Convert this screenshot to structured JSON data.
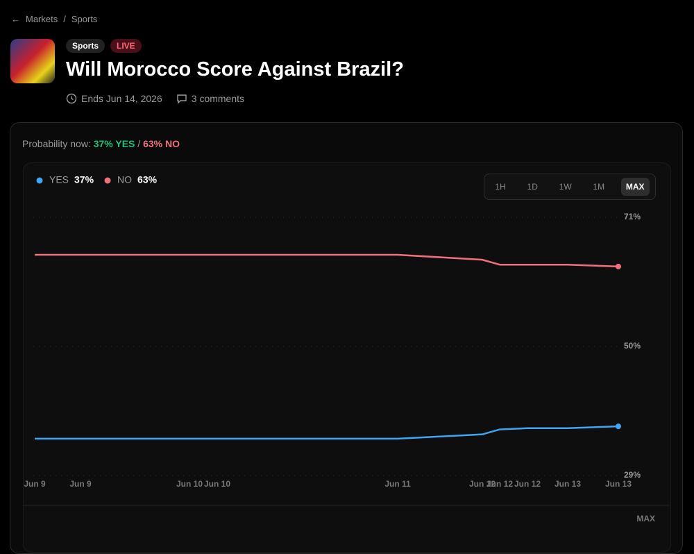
{
  "breadcrumb": [
    "Markets",
    "Sports"
  ],
  "header": {
    "tags": [
      "Sports",
      "LIVE"
    ],
    "title": "Will Morocco Score Against Brazil?",
    "ends": "Ends Jun 14, 2026",
    "comments": "3 comments"
  },
  "probability": {
    "label": "Probability now:",
    "yes": "37% YES",
    "separator": "/",
    "no": "63% NO"
  },
  "ranges": [
    "1H",
    "1D",
    "1W",
    "1M",
    "MAX"
  ],
  "footer_range": "MAX",
  "chart_data": {
    "type": "line",
    "x": [
      "Jun 9",
      "Jun 9",
      "Jun 10",
      "Jun 10",
      "Jun 11",
      "Jun 12",
      "Jun 12",
      "Jun 12",
      "Jun 13",
      "Jun 13"
    ],
    "series": [
      {
        "name": "YES",
        "color": "#3ea6f2",
        "current": "37%",
        "values": [
          35.0,
          35.0,
          35.0,
          35.0,
          35.0,
          35.7,
          36.5,
          36.7,
          36.7,
          37
        ]
      },
      {
        "name": "NO",
        "color": "#f0707c",
        "current": "63%",
        "values": [
          64.9,
          64.9,
          64.9,
          64.9,
          64.9,
          64.1,
          63.3,
          63.3,
          63.3,
          63
        ]
      }
    ],
    "ylim": [
      29,
      71
    ],
    "yticks": [
      {
        "value": 71,
        "label": "71%"
      },
      {
        "value": 50,
        "label": "50%"
      },
      {
        "value": 29,
        "label": "29%"
      }
    ],
    "grid": true
  }
}
